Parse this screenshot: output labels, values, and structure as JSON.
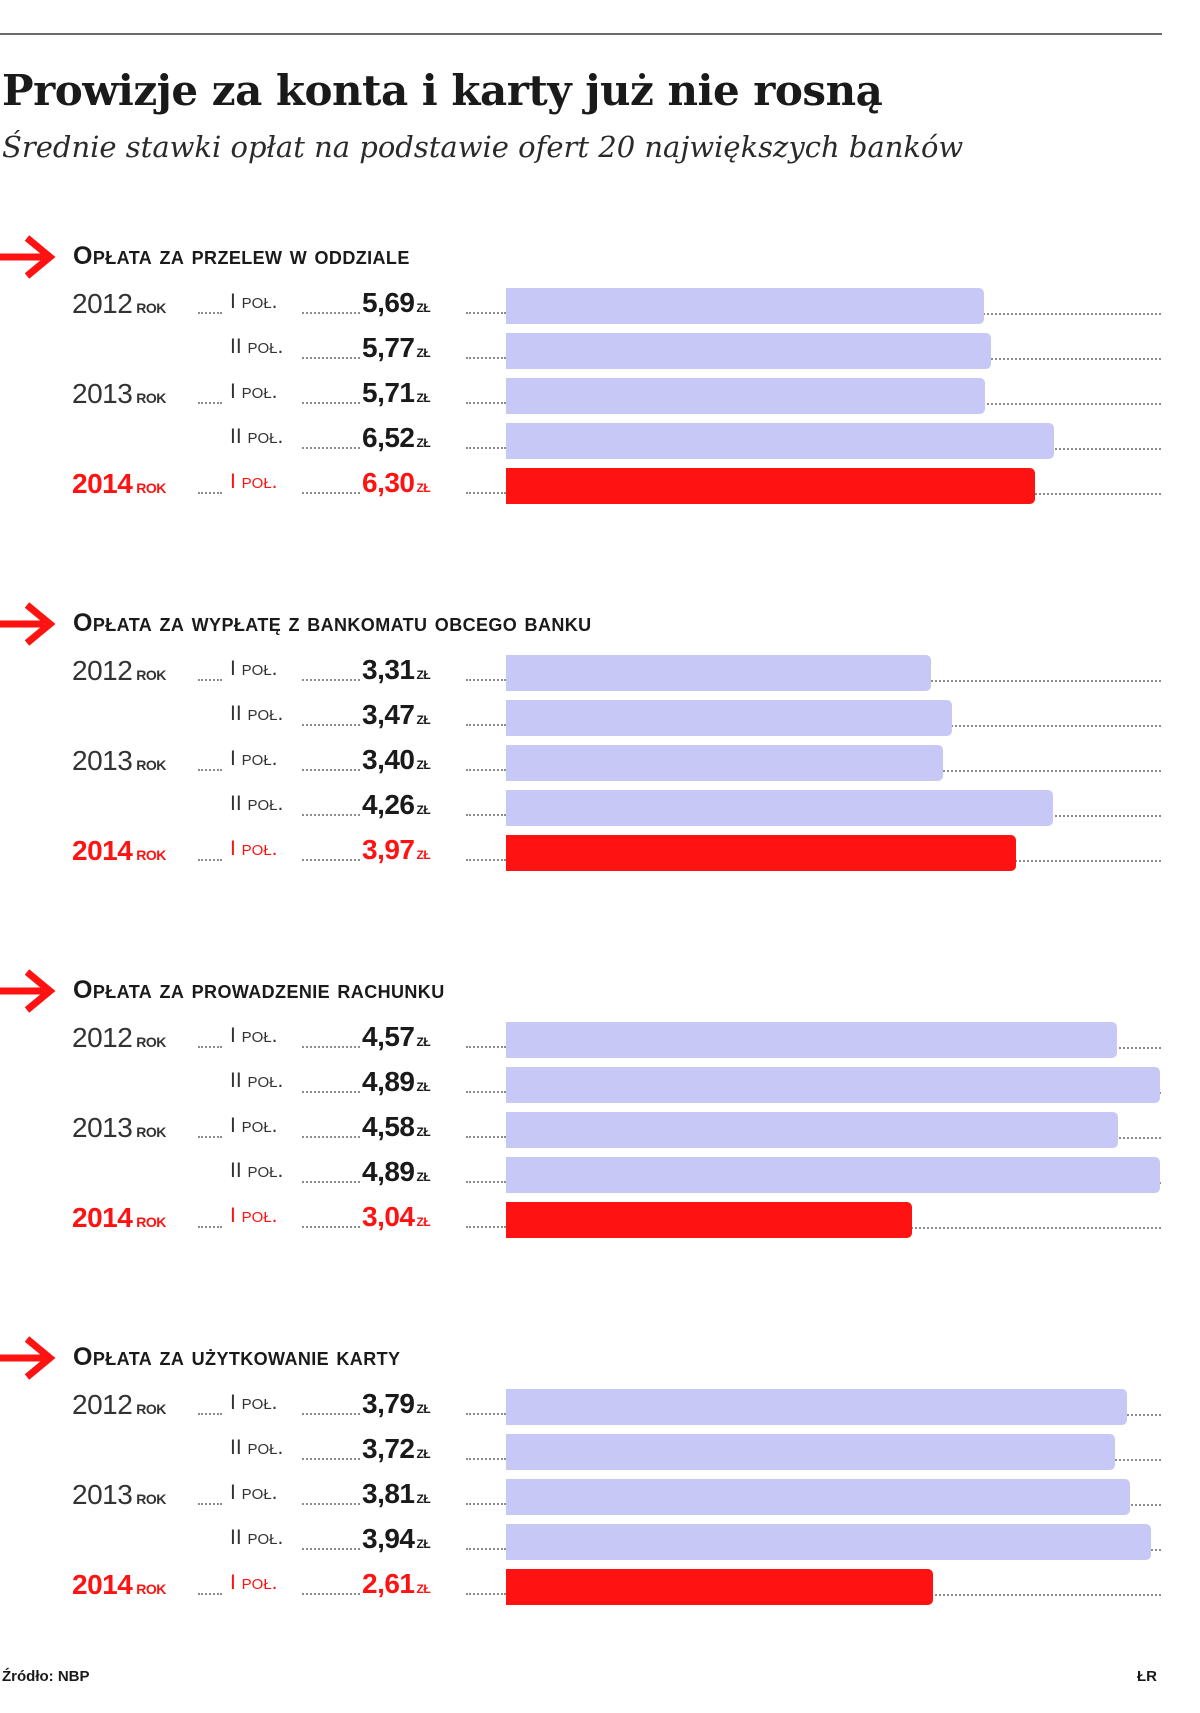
{
  "title": "Prowizje za konta i karty już nie rosną",
  "subtitle": "Średnie stawki opłat na podstawie ofert 20 największych banków",
  "source": "Źródło: NBP",
  "credit": "ŁR",
  "colors": {
    "previous": "#c8c8f7",
    "highlight": "#ff1212",
    "text": "#1a1a1a",
    "accent_arrow": "#ff1212"
  },
  "icons": {
    "section_marker": "arrow-right-icon"
  },
  "chart_data": [
    {
      "type": "bar",
      "orientation": "horizontal",
      "title": "Opłata za przelew w oddziale",
      "unit": "zł",
      "rows": [
        {
          "year": "2012",
          "year_suffix": "rok",
          "half": "I poł.",
          "label": "5,69",
          "value": 5.69,
          "highlight": false
        },
        {
          "year": "",
          "year_suffix": "",
          "half": "II poł.",
          "label": "5,77",
          "value": 5.77,
          "highlight": false
        },
        {
          "year": "2013",
          "year_suffix": "rok",
          "half": "I poł.",
          "label": "5,71",
          "value": 5.71,
          "highlight": false
        },
        {
          "year": "",
          "year_suffix": "",
          "half": "II poł.",
          "label": "6,52",
          "value": 6.52,
          "highlight": false
        },
        {
          "year": "2014",
          "year_suffix": "rok",
          "half": "I poł.",
          "label": "6,30",
          "value": 6.3,
          "highlight": true
        }
      ],
      "xlim": [
        0,
        7.8
      ],
      "grid": false
    },
    {
      "type": "bar",
      "orientation": "horizontal",
      "title": "Opłata za wypłatę z bankomatu obcego banku",
      "unit": "zł",
      "rows": [
        {
          "year": "2012",
          "year_suffix": "rok",
          "half": "I poł.",
          "label": "3,31",
          "value": 3.31,
          "highlight": false
        },
        {
          "year": "",
          "year_suffix": "",
          "half": "II poł.",
          "label": "3,47",
          "value": 3.47,
          "highlight": false
        },
        {
          "year": "2013",
          "year_suffix": "rok",
          "half": "I poł.",
          "label": "3,40",
          "value": 3.4,
          "highlight": false
        },
        {
          "year": "",
          "year_suffix": "",
          "half": "II poł.",
          "label": "4,26",
          "value": 4.26,
          "highlight": false
        },
        {
          "year": "2014",
          "year_suffix": "rok",
          "half": "I poł.",
          "label": "3,97",
          "value": 3.97,
          "highlight": true
        }
      ],
      "xlim": [
        0,
        5.1
      ],
      "grid": false
    },
    {
      "type": "bar",
      "orientation": "horizontal",
      "title": "Opłata za prowadzenie rachunku",
      "unit": "zł",
      "rows": [
        {
          "year": "2012",
          "year_suffix": "rok",
          "half": "I poł.",
          "label": "4,57",
          "value": 4.57,
          "highlight": false
        },
        {
          "year": "",
          "year_suffix": "",
          "half": "II poł.",
          "label": "4,89",
          "value": 4.89,
          "highlight": false
        },
        {
          "year": "2013",
          "year_suffix": "rok",
          "half": "I poł.",
          "label": "4,58",
          "value": 4.58,
          "highlight": false
        },
        {
          "year": "",
          "year_suffix": "",
          "half": "II poł.",
          "label": "4,89",
          "value": 4.89,
          "highlight": false
        },
        {
          "year": "2014",
          "year_suffix": "rok",
          "half": "I poł.",
          "label": "3,04",
          "value": 3.04,
          "highlight": true
        }
      ],
      "xlim": [
        0,
        4.9
      ],
      "grid": false
    },
    {
      "type": "bar",
      "orientation": "horizontal",
      "title": "Opłata za użytkowanie karty",
      "unit": "zł",
      "rows": [
        {
          "year": "2012",
          "year_suffix": "rok",
          "half": "I poł.",
          "label": "3,79",
          "value": 3.79,
          "highlight": false
        },
        {
          "year": "",
          "year_suffix": "",
          "half": "II poł.",
          "label": "3,72",
          "value": 3.72,
          "highlight": false
        },
        {
          "year": "2013",
          "year_suffix": "rok",
          "half": "I poł.",
          "label": "3,81",
          "value": 3.81,
          "highlight": false
        },
        {
          "year": "",
          "year_suffix": "",
          "half": "II poł.",
          "label": "3,94",
          "value": 3.94,
          "highlight": false
        },
        {
          "year": "2014",
          "year_suffix": "rok",
          "half": "I poł.",
          "label": "2,61",
          "value": 2.61,
          "highlight": true
        }
      ],
      "xlim": [
        0,
        4.0
      ],
      "grid": false
    }
  ]
}
